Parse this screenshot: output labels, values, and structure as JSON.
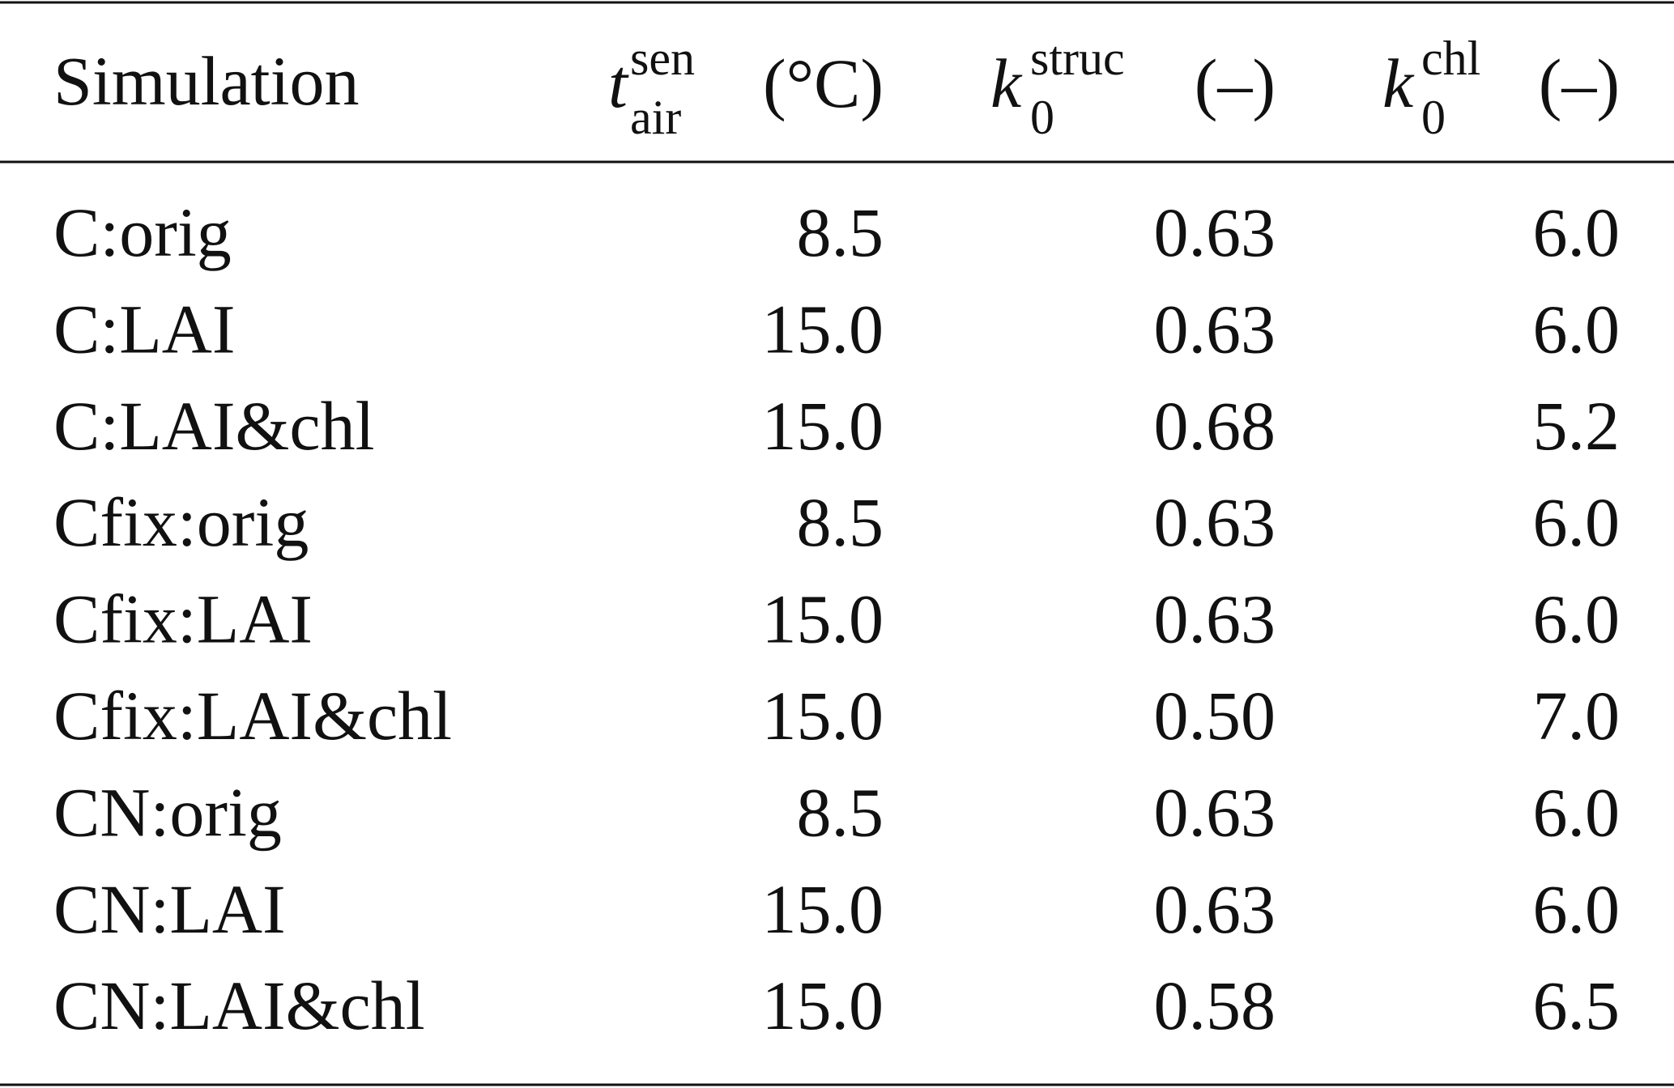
{
  "table": {
    "columns": [
      {
        "label": "Simulation"
      },
      {
        "symbol": "t",
        "sup": "sen",
        "sub": "air",
        "unit": "(°C)"
      },
      {
        "symbol": "k",
        "sup": "struc",
        "sub": "0",
        "unit": "(–)"
      },
      {
        "symbol": "k",
        "sup": "chl",
        "sub": "0",
        "unit": "(–)"
      }
    ],
    "rows": [
      [
        "C:orig",
        "8.5",
        "0.63",
        "6.0"
      ],
      [
        "C:LAI",
        "15.0",
        "0.63",
        "6.0"
      ],
      [
        "C:LAI&chl",
        "15.0",
        "0.68",
        "5.2"
      ],
      [
        "Cfix:orig",
        "8.5",
        "0.63",
        "6.0"
      ],
      [
        "Cfix:LAI",
        "15.0",
        "0.63",
        "6.0"
      ],
      [
        "Cfix:LAI&chl",
        "15.0",
        "0.50",
        "7.0"
      ],
      [
        "CN:orig",
        "8.5",
        "0.63",
        "6.0"
      ],
      [
        "CN:LAI",
        "15.0",
        "0.63",
        "6.0"
      ],
      [
        "CN:LAI&chl",
        "15.0",
        "0.58",
        "6.5"
      ]
    ]
  }
}
